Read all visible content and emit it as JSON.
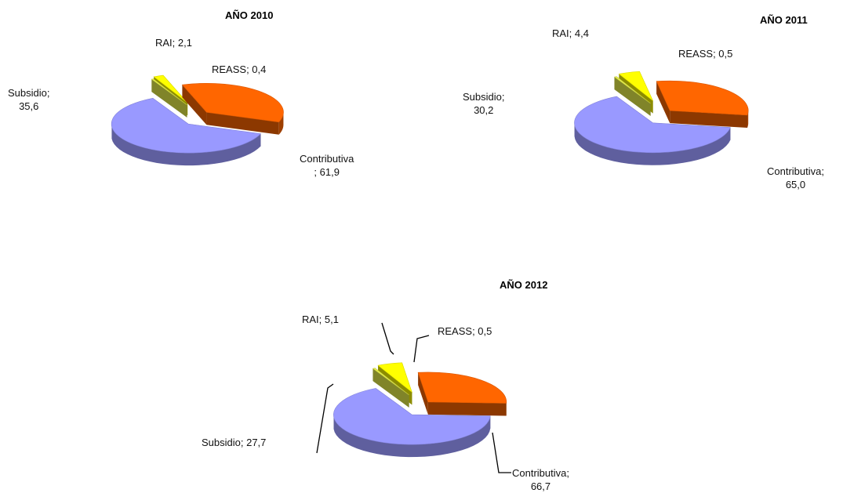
{
  "chart_data": [
    {
      "type": "pie",
      "title": "AÑO 2010",
      "slices": [
        {
          "label": "Contributiva",
          "value": 61.9,
          "label_text": [
            "Contributiva",
            "; 61,9"
          ]
        },
        {
          "label": "Subsidio",
          "value": 35.6,
          "label_text": [
            "Subsidio;",
            "35,6"
          ]
        },
        {
          "label": "RAI",
          "value": 2.1,
          "label_text": [
            "RAI; 2,1"
          ]
        },
        {
          "label": "REASS",
          "value": 0.4,
          "label_text": [
            "REASS; 0,4"
          ]
        }
      ]
    },
    {
      "type": "pie",
      "title": "AÑO 2011",
      "slices": [
        {
          "label": "Contributiva",
          "value": 65.0,
          "label_text": [
            "Contributiva;",
            "65,0"
          ]
        },
        {
          "label": "Subsidio",
          "value": 30.2,
          "label_text": [
            "Subsidio;",
            "30,2"
          ]
        },
        {
          "label": "RAI",
          "value": 4.4,
          "label_text": [
            "RAI; 4,4"
          ]
        },
        {
          "label": "REASS",
          "value": 0.5,
          "label_text": [
            "REASS; 0,5"
          ]
        }
      ]
    },
    {
      "type": "pie",
      "title": "AÑO 2012",
      "slices": [
        {
          "label": "Contributiva",
          "value": 66.7,
          "label_text": [
            "Contributiva;",
            "66,7"
          ]
        },
        {
          "label": "Subsidio",
          "value": 27.7,
          "label_text": [
            "Subsidio; 27,7"
          ]
        },
        {
          "label": "RAI",
          "value": 5.1,
          "label_text": [
            "RAI; 5,1"
          ]
        },
        {
          "label": "REASS",
          "value": 0.5,
          "label_text": [
            "REASS; 0,5"
          ]
        }
      ]
    }
  ],
  "colors": {
    "Contributiva": "#9999ff",
    "Subsidio": "#ff6600",
    "RAI": "#ffff00",
    "REASS": "#e8f04a"
  }
}
